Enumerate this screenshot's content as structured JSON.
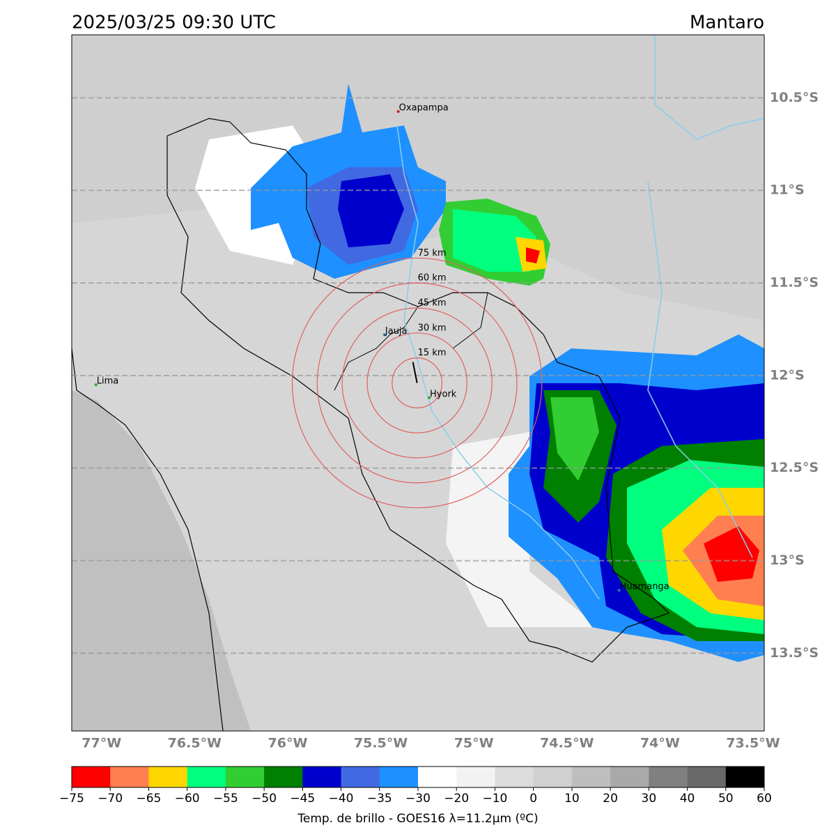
{
  "title": "2025/03/25 09:30 UTC",
  "region": "Mantaro",
  "map": {
    "xlim": [
      -77.16,
      -73.44
    ],
    "ylim": [
      -13.92,
      -10.16
    ],
    "xticks": [
      {
        "value": -77,
        "label": "77°W"
      },
      {
        "value": -76.5,
        "label": "76.5°W"
      },
      {
        "value": -76,
        "label": "76°W"
      },
      {
        "value": -75.5,
        "label": "75.5°W"
      },
      {
        "value": -75,
        "label": "75°W"
      },
      {
        "value": -74.5,
        "label": "74.5°W"
      },
      {
        "value": -74,
        "label": "74°W"
      },
      {
        "value": -73.5,
        "label": "73.5°W"
      }
    ],
    "yticks": [
      {
        "value": -10.5,
        "label": "10.5°S"
      },
      {
        "value": -11,
        "label": "11°S"
      },
      {
        "value": -11.5,
        "label": "11.5°S"
      },
      {
        "value": -12,
        "label": "12°S"
      },
      {
        "value": -12.5,
        "label": "12.5°S"
      },
      {
        "value": -13,
        "label": "13°S"
      },
      {
        "value": -13.5,
        "label": "13.5°S"
      }
    ],
    "grid": true,
    "places": [
      {
        "name": "Oxapampa",
        "lon": -75.406,
        "lat": -10.574,
        "color": "#cc2222"
      },
      {
        "name": "Jauja",
        "lon": -75.48,
        "lat": -11.78,
        "color": "#1f77b4"
      },
      {
        "name": "Hyork",
        "lon": -75.24,
        "lat": -12.12,
        "color": "#2ca02c"
      },
      {
        "name": "Lima",
        "lon": -77.03,
        "lat": -12.05,
        "color": "#2ca02c"
      },
      {
        "name": "Huamanga",
        "lon": -74.22,
        "lat": -13.16,
        "color": "#1f77b4"
      }
    ],
    "rings": {
      "center": [
        -75.305,
        -12.04
      ],
      "radii_km": [
        15,
        30,
        45,
        60,
        75
      ],
      "labels": [
        "15 km",
        "30 km",
        "45 km",
        "60 km",
        "75 km"
      ],
      "color": "#e06060"
    }
  },
  "colorbar": {
    "bins": [
      -75,
      -70,
      -65,
      -60,
      -55,
      -50,
      -45,
      -40,
      -35,
      -30,
      -20,
      -10,
      0,
      10,
      20,
      30,
      40,
      50,
      60
    ],
    "colors": [
      "#ff0000",
      "#ff7f50",
      "#ffd700",
      "#00ff7f",
      "#32cd32",
      "#008000",
      "#0000cd",
      "#4169e1",
      "#1e90ff",
      "#ffffff",
      "#f2f2f2",
      "#dcdcdc",
      "#d0d0d0",
      "#bebebe",
      "#a9a9a9",
      "#808080",
      "#696969",
      "#000000"
    ],
    "ticks": [
      {
        "value": -75,
        "label": "−75"
      },
      {
        "value": -70,
        "label": "−70"
      },
      {
        "value": -65,
        "label": "−65"
      },
      {
        "value": -60,
        "label": "−60"
      },
      {
        "value": -55,
        "label": "−55"
      },
      {
        "value": -50,
        "label": "−50"
      },
      {
        "value": -45,
        "label": "−45"
      },
      {
        "value": -40,
        "label": "−40"
      },
      {
        "value": -35,
        "label": "−35"
      },
      {
        "value": -30,
        "label": "−30"
      },
      {
        "value": -20,
        "label": "−20"
      },
      {
        "value": -10,
        "label": "−10"
      },
      0,
      10,
      20,
      30,
      40,
      50,
      60
    ],
    "label": "Temp. de brillo - GOES16 λ=11.2μm (ºC)"
  }
}
